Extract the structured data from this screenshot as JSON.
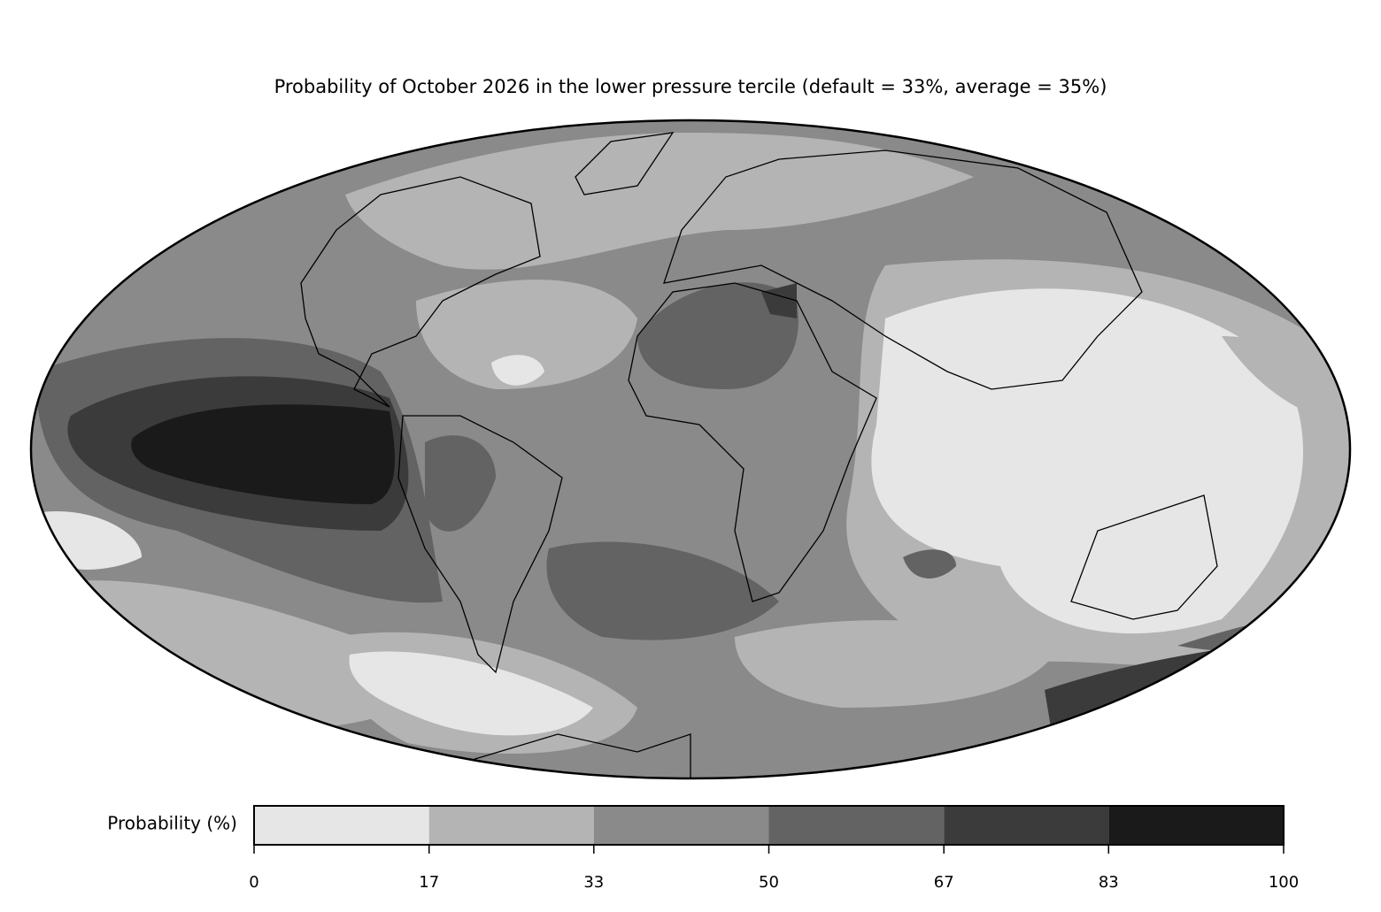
{
  "title": "Probability of October 2026 in the lower pressure tercile (default = 33%, average = 35%)",
  "colorbar": {
    "label": "Probability (%)",
    "lim": [
      0,
      100
    ],
    "ticks": [
      0,
      17,
      33,
      50,
      67,
      83,
      100
    ],
    "colors": [
      "#e6e6e6",
      "#b4b4b4",
      "#8a8a8a",
      "#636363",
      "#3b3b3b",
      "#1a1a1a"
    ]
  }
}
